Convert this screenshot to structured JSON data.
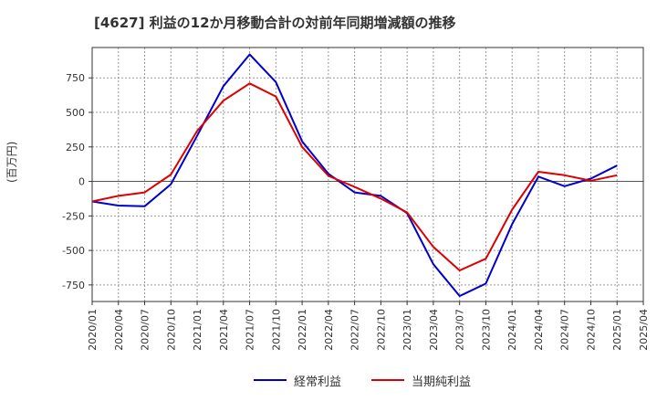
{
  "chart_data": {
    "type": "line",
    "title": "[4627]  利益の12か月移動合計の対前年同期増減額の推移",
    "ylabel": "(百万円)",
    "xlabel": "",
    "ylim": [
      -870,
      970
    ],
    "yticks": [
      -750,
      -500,
      -250,
      0,
      250,
      500,
      750
    ],
    "ytick_labels": [
      "-750",
      "-500",
      "-250",
      "0",
      "250",
      "500",
      "750"
    ],
    "categories": [
      "2020/01",
      "2020/04",
      "2020/07",
      "2020/10",
      "2021/01",
      "2021/04",
      "2021/07",
      "2021/10",
      "2022/01",
      "2022/04",
      "2022/07",
      "2022/10",
      "2023/01",
      "2023/04",
      "2023/07",
      "2023/10",
      "2024/01",
      "2024/04",
      "2024/07",
      "2024/10",
      "2025/01",
      "2025/04"
    ],
    "grid": true,
    "series": [
      {
        "name": "経常利益",
        "color": "#0000cc",
        "values": [
          -145,
          -175,
          -180,
          -20,
          330,
          690,
          920,
          720,
          290,
          55,
          -80,
          -105,
          -230,
          -600,
          -830,
          -740,
          -310,
          35,
          -35,
          20,
          115,
          null
        ]
      },
      {
        "name": "当期純利益",
        "color": "#dd0000",
        "values": [
          -145,
          -105,
          -80,
          50,
          365,
          585,
          710,
          615,
          250,
          40,
          -40,
          -125,
          -225,
          -475,
          -645,
          -560,
          -205,
          70,
          45,
          5,
          45,
          null
        ]
      }
    ],
    "legend_position": "bottom"
  }
}
